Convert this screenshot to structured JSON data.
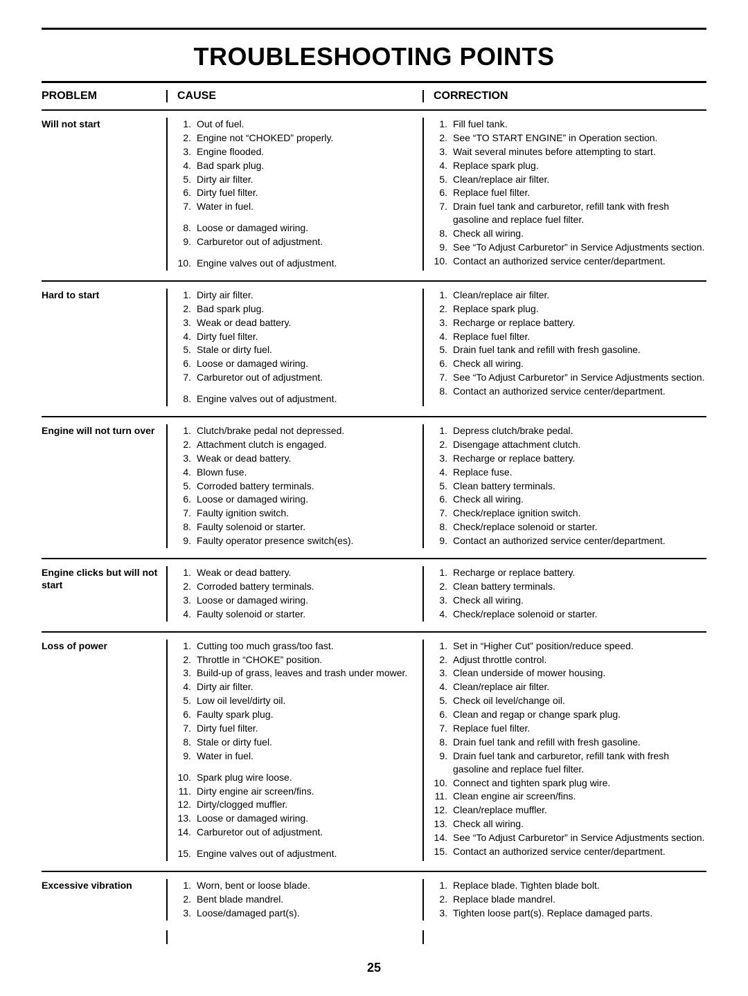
{
  "title": "TROUBLESHOOTING POINTS",
  "page_number": "25",
  "columns": {
    "problem": "PROBLEM",
    "cause": "CAUSE",
    "correction": "CORRECTION"
  },
  "sections": [
    {
      "problem": "Will not start",
      "cause": [
        "Out of fuel.",
        "Engine not “CHOKED” properly.",
        "Engine flooded.",
        "Bad spark plug.",
        "Dirty air filter.",
        "Dirty fuel filter.",
        "Water in fuel.",
        "",
        "Loose or damaged wiring.",
        "Carburetor out of adjustment.",
        "",
        "Engine valves out of adjustment."
      ],
      "correction": [
        "Fill fuel tank.",
        "See “TO START ENGINE” in Operation section.",
        "Wait several minutes before attempting to start.",
        "Replace spark plug.",
        "Clean/replace air filter.",
        "Replace fuel filter.",
        "Drain fuel tank and carburetor, refill tank with fresh gasoline and replace fuel filter.",
        "Check all wiring.",
        "See “To Adjust Carburetor” in Service Adjustments section.",
        "Contact an authorized service center/department."
      ]
    },
    {
      "problem": "Hard to start",
      "cause": [
        "Dirty air filter.",
        "Bad spark plug.",
        "Weak or dead battery.",
        "Dirty fuel filter.",
        "Stale or dirty fuel.",
        "Loose or damaged wiring.",
        "Carburetor out of adjustment.",
        "",
        "Engine valves out of adjustment."
      ],
      "correction": [
        "Clean/replace air filter.",
        "Replace spark plug.",
        "Recharge or replace battery.",
        "Replace fuel filter.",
        "Drain fuel tank and refill with fresh gasoline.",
        "Check all wiring.",
        "See “To Adjust Carburetor” in Service Adjustments section.",
        "Contact an authorized service center/department."
      ]
    },
    {
      "problem": "Engine will not turn over",
      "cause": [
        "Clutch/brake pedal not depressed.",
        "Attachment clutch is engaged.",
        "Weak or dead battery.",
        "Blown fuse.",
        "Corroded battery terminals.",
        "Loose or damaged wiring.",
        "Faulty ignition switch.",
        "Faulty solenoid or starter.",
        "Faulty operator presence switch(es)."
      ],
      "correction": [
        "Depress clutch/brake pedal.",
        "Disengage attachment clutch.",
        "Recharge or replace battery.",
        "Replace fuse.",
        "Clean battery terminals.",
        "Check all wiring.",
        "Check/replace ignition switch.",
        "Check/replace solenoid or starter.",
        "Contact an authorized service center/department."
      ]
    },
    {
      "problem": "Engine clicks but will not start",
      "cause": [
        "Weak or dead battery.",
        "Corroded battery terminals.",
        "Loose or damaged wiring.",
        "Faulty solenoid or starter."
      ],
      "correction": [
        "Recharge or replace battery.",
        "Clean battery terminals.",
        "Check all wiring.",
        "Check/replace solenoid or starter."
      ]
    },
    {
      "problem": "Loss of power",
      "cause": [
        "Cutting too much grass/too fast.",
        "Throttle in “CHOKE” position.",
        "Build-up of grass, leaves and trash under mower.",
        "Dirty air filter.",
        "Low oil level/dirty oil.",
        "Faulty spark plug.",
        "Dirty fuel filter.",
        "Stale or dirty fuel.",
        "Water in fuel.",
        "",
        "Spark plug wire loose.",
        "Dirty engine air screen/fins.",
        "Dirty/clogged muffler.",
        "Loose or damaged wiring.",
        "Carburetor out of adjustment.",
        "",
        "Engine valves out of adjustment."
      ],
      "correction": [
        "Set in “Higher Cut” position/reduce speed.",
        "Adjust throttle control.",
        "Clean underside of mower housing.",
        "Clean/replace air filter.",
        "Check oil level/change oil.",
        "Clean and regap or change spark plug.",
        "Replace fuel filter.",
        "Drain fuel tank and refill with fresh gasoline.",
        "Drain fuel tank and carburetor, refill tank with fresh gasoline and replace fuel filter.",
        "Connect and tighten spark plug wire.",
        "Clean engine air screen/fins.",
        "Clean/replace muffler.",
        "Check all wiring.",
        "See “To Adjust Carburetor” in Service Adjustments section.",
        "Contact an authorized service center/department."
      ]
    },
    {
      "problem": "Excessive vibration",
      "cause": [
        "Worn, bent or loose blade.",
        "Bent blade mandrel.",
        "Loose/damaged part(s)."
      ],
      "correction": [
        "Replace blade.  Tighten blade bolt.",
        "Replace blade mandrel.",
        "Tighten loose part(s).  Replace damaged parts."
      ]
    }
  ]
}
